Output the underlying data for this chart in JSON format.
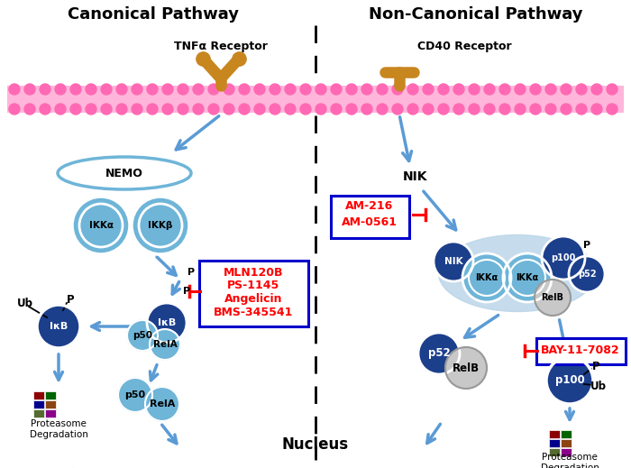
{
  "canonical_title": "Canonical Pathway",
  "noncanonical_title": "Non-Canonical Pathway",
  "tnfa_label": "TNFα Receptor",
  "cd40_label": "CD40 Receptor",
  "nemo_label": "NEMO",
  "nik_label": "NIK",
  "nucleus_label": "Nucleus",
  "ikka_label": "IKKα",
  "ikkb_label": "IKKβ",
  "ikb_label": "IκB",
  "p50_label": "p50",
  "rela_label": "RelA",
  "relb_label": "RelB",
  "ub_label": "Ub",
  "p_label": "P",
  "proteasome_label": "Proteasome\nDegradation",
  "inhibitor1_lines": [
    "MLN120B",
    "PS-1145",
    "Angelicin",
    "BMS-345541"
  ],
  "inhibitor2_lines": [
    "AM-216",
    "AM-0561"
  ],
  "inhibitor3_lines": [
    "BAY-11-7082"
  ],
  "receptor_color": "#C8861E",
  "membrane_fill": "#FFB6DA",
  "membrane_dot": "#FF69B4",
  "light_blue": "#6EB5D8",
  "dark_blue": "#1C3F8C",
  "gray": "#C8C8C8",
  "arrow_blue": "#5B9BD5",
  "red": "#FF0000",
  "box_border": "#0000CC",
  "bg": "#FFFFFF"
}
